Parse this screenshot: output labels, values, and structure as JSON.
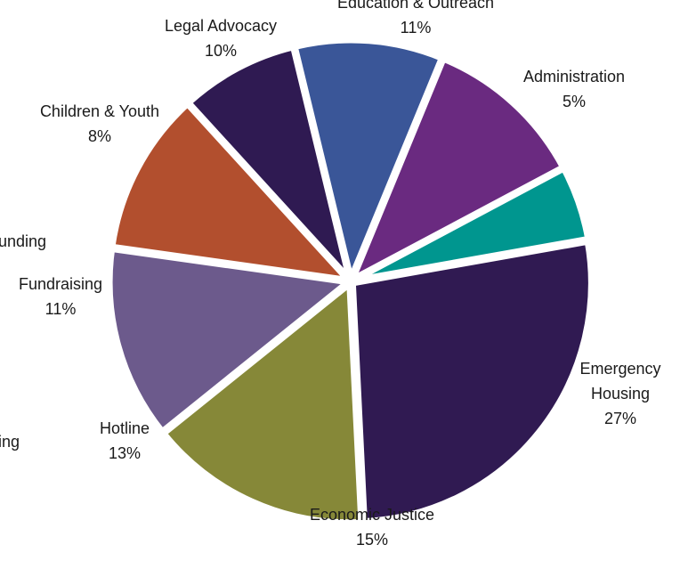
{
  "chart_data": {
    "type": "pie",
    "title": "",
    "legend": "none",
    "truncated_labels": [
      "unding",
      "ing"
    ],
    "slices": [
      {
        "name": "Administration",
        "line1": "Administration",
        "line2": "",
        "value": 5,
        "pct_label": "5%",
        "color": "#00968f"
      },
      {
        "name": "Emergency Housing",
        "line1": "Emergency",
        "line2": "Housing",
        "value": 27,
        "pct_label": "27%",
        "color": "#301a52"
      },
      {
        "name": "Economic Justice",
        "line1": "Economic Justice",
        "line2": "",
        "value": 15,
        "pct_label": "15%",
        "color": "#868838"
      },
      {
        "name": "Hotline",
        "line1": "Hotline",
        "line2": "",
        "value": 13,
        "pct_label": "13%",
        "color": "#6c5a8c"
      },
      {
        "name": "Fundraising",
        "line1": "Fundraising",
        "line2": "",
        "value": 11,
        "pct_label": "11%",
        "color": "#b24f2e"
      },
      {
        "name": "Children & Youth",
        "line1": "Children & Youth",
        "line2": "",
        "value": 8,
        "pct_label": "8%",
        "color": "#2f1a52"
      },
      {
        "name": "Legal Advocacy",
        "line1": "Legal Advocacy",
        "line2": "",
        "value": 10,
        "pct_label": "10%",
        "color": "#3a5698"
      },
      {
        "name": "Education & Outreach",
        "line1": "Education & Outreach",
        "line2": "",
        "value": 11,
        "pct_label": "11%",
        "color": "#6a2a80"
      }
    ]
  }
}
